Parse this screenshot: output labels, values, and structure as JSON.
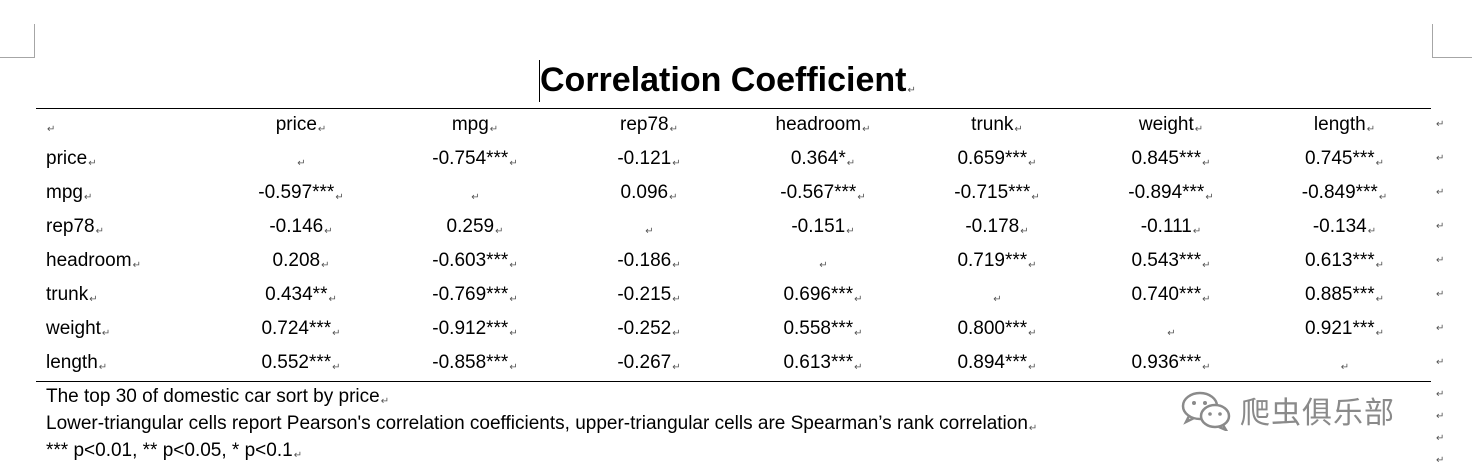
{
  "title": "Correlation Coefficient",
  "paragraph_mark": "↵",
  "table": {
    "columns": [
      "price",
      "mpg",
      "rep78",
      "headroom",
      "trunk",
      "weight",
      "length"
    ],
    "rows": [
      {
        "label": "price",
        "cells": [
          "",
          "-0.754***",
          "-0.121",
          "0.364*",
          "0.659***",
          "0.845***",
          "0.745***"
        ]
      },
      {
        "label": "mpg",
        "cells": [
          "-0.597***",
          "",
          "0.096",
          "-0.567***",
          "-0.715***",
          "-0.894***",
          "-0.849***"
        ]
      },
      {
        "label": "rep78",
        "cells": [
          "-0.146",
          "0.259",
          "",
          "-0.151",
          "-0.178",
          "-0.111",
          "-0.134"
        ]
      },
      {
        "label": "headroom",
        "cells": [
          "0.208",
          "-0.603***",
          "-0.186",
          "",
          "0.719***",
          "0.543***",
          "0.613***"
        ]
      },
      {
        "label": "trunk",
        "cells": [
          "0.434**",
          "-0.769***",
          "-0.215",
          "0.696***",
          "",
          "0.740***",
          "0.885***"
        ]
      },
      {
        "label": "weight",
        "cells": [
          "0.724***",
          "-0.912***",
          "-0.252",
          "0.558***",
          "0.800***",
          "",
          "0.921***"
        ]
      },
      {
        "label": "length",
        "cells": [
          "0.552***",
          "-0.858***",
          "-0.267",
          "0.613***",
          "0.894***",
          "0.936***",
          ""
        ]
      }
    ]
  },
  "notes": [
    "The top 30 of domestic car sort by price",
    "Lower-triangular cells report Pearson's correlation coefficients, upper-triangular cells are Spearman’s rank correlation",
    "*** p<0.01, ** p<0.05, * p<0.1"
  ],
  "watermark": {
    "text": "爬虫俱乐部",
    "icon": "wechat-icon",
    "color": "#8a8a8a"
  }
}
